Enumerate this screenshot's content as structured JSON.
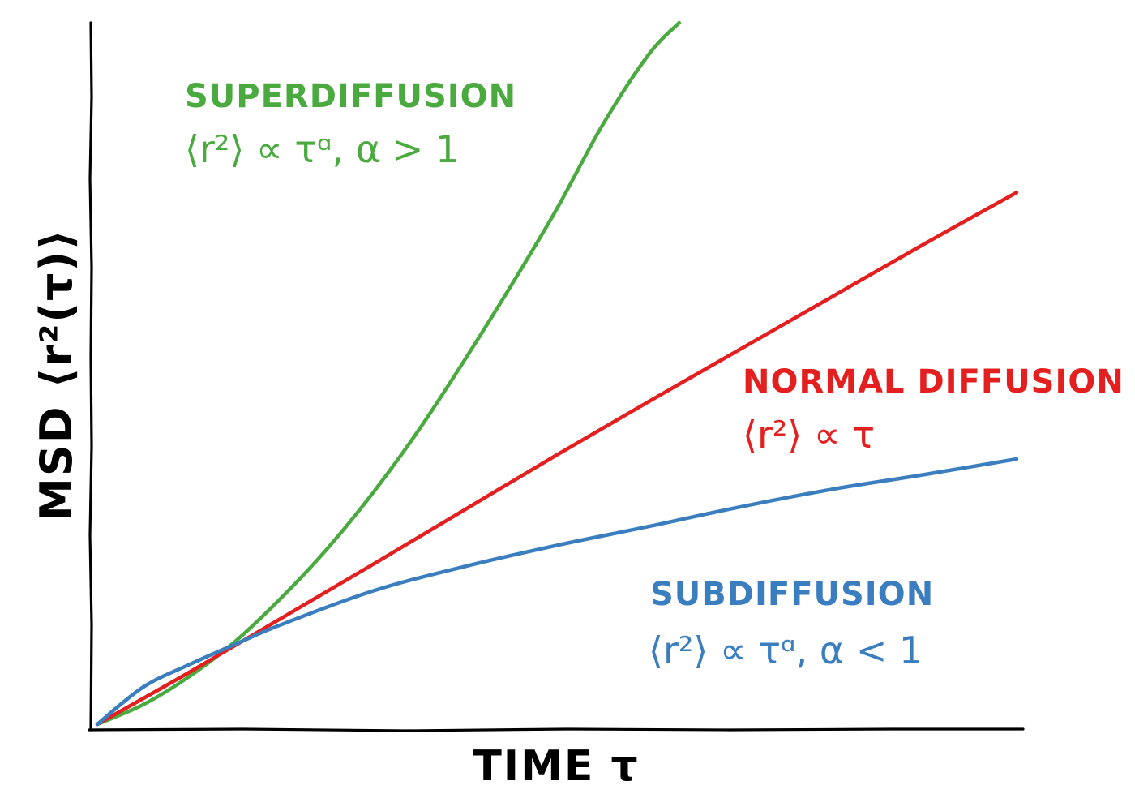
{
  "chart_data": {
    "type": "line",
    "xlabel": "TIME τ",
    "ylabel": "MSD ⟨r²(τ)⟩",
    "xlim": [
      0,
      1
    ],
    "ylim": [
      0,
      1
    ],
    "grid": false,
    "style": "hand-drawn",
    "series": [
      {
        "key": "superdiffusion",
        "color": "#4aaa3f",
        "x": [
          0,
          0.05,
          0.1,
          0.15,
          0.2,
          0.25,
          0.3,
          0.35,
          0.4,
          0.45,
          0.5,
          0.55,
          0.6,
          0.633
        ],
        "values": [
          0,
          0.028,
          0.068,
          0.118,
          0.18,
          0.25,
          0.33,
          0.42,
          0.52,
          0.625,
          0.735,
          0.855,
          0.955,
          1.0
        ]
      },
      {
        "key": "normal",
        "color": "#e31f1f",
        "x": [
          0,
          0.1,
          0.2,
          0.3,
          0.4,
          0.5,
          0.6,
          0.7,
          0.8,
          0.9,
          1.0
        ],
        "values": [
          0,
          0.074,
          0.151,
          0.228,
          0.306,
          0.384,
          0.46,
          0.535,
          0.61,
          0.685,
          0.758
        ]
      },
      {
        "key": "subdiffusion",
        "color": "#3a7ebf",
        "x": [
          0,
          0.05,
          0.1,
          0.15,
          0.2,
          0.3,
          0.4,
          0.5,
          0.6,
          0.7,
          0.8,
          0.9,
          1.0
        ],
        "values": [
          0,
          0.053,
          0.085,
          0.114,
          0.142,
          0.19,
          0.225,
          0.255,
          0.282,
          0.31,
          0.335,
          0.356,
          0.378
        ]
      }
    ],
    "annotations": [
      {
        "key": "super",
        "color": "#4aaa3f",
        "title": "SUPERDIFFUSION",
        "formula": "⟨r²⟩ ∝ τᵅ, α > 1"
      },
      {
        "key": "normal",
        "color": "#e31f1f",
        "title": "NORMAL DIFFUSION",
        "formula": "⟨r²⟩ ∝ τ"
      },
      {
        "key": "sub",
        "color": "#3a7ebf",
        "title": "SUBDIFFUSION",
        "formula": "⟨r²⟩ ∝ τᵅ, α < 1"
      }
    ]
  }
}
